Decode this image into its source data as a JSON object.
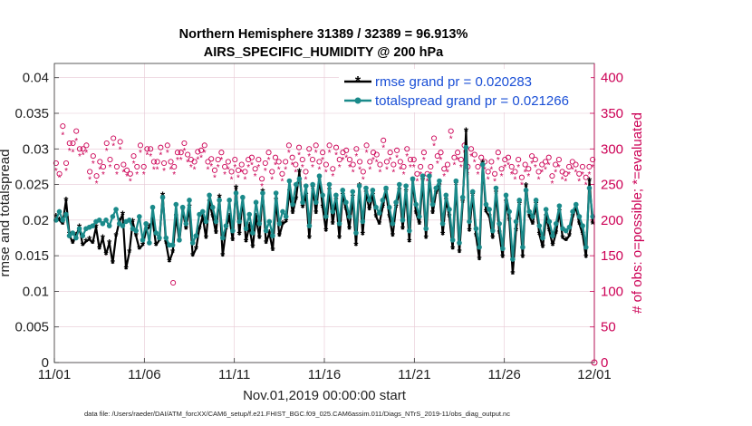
{
  "chart_data": {
    "type": "line",
    "title": "Northern Hemisphere 31389 / 32389 = 96.913%",
    "subtitle": "AIRS_SPECIFIC_HUMIDITY @ 200 hPa",
    "xlabel": "Nov.01,2019 00:00:00 start",
    "ylabel": "rmse and totalspread",
    "ylabel_right": "# of obs: o=possible; *=evaluated",
    "footnote": "data file: /Users/raeder/DAI/ATM_forcXX/CAM6_setup/f.e21.FHIST_BGC.f09_025.CAM6assim.011/Diags_NTrS_2019-11/obs_diag_output.nc",
    "x_tick_labels": [
      "11/01",
      "11/06",
      "11/11",
      "11/16",
      "11/21",
      "11/26",
      "12/01"
    ],
    "x_tick_days": [
      0,
      5,
      10,
      15,
      20,
      25,
      30
    ],
    "y_tick_labels": [
      "0",
      "0.005",
      "0.01",
      "0.015",
      "0.02",
      "0.025",
      "0.03",
      "0.035",
      "0.04"
    ],
    "ylim": [
      0,
      0.042
    ],
    "y2_tick_labels": [
      "0",
      "50",
      "100",
      "150",
      "200",
      "250",
      "300",
      "350",
      "400"
    ],
    "y2lim": [
      0,
      420
    ],
    "xlim": [
      0,
      30
    ],
    "legend_location": "top-right",
    "series": [
      {
        "name": "rmse grand pr = 0.020283",
        "color": "#000000",
        "marker": "star",
        "values": [
          0.0205,
          0.02,
          0.0195,
          0.0228,
          0.018,
          0.0168,
          0.0178,
          0.019,
          0.0165,
          0.017,
          0.0173,
          0.0168,
          0.019,
          0.016,
          0.0175,
          0.0152,
          0.0168,
          0.014,
          0.0178,
          0.0198,
          0.0208,
          0.0132,
          0.0155,
          0.0198,
          0.0178,
          0.016,
          0.0165,
          0.0185,
          0.019,
          0.02,
          0.0165,
          0.0172,
          0.0235,
          0.0168,
          0.0142,
          0.0155,
          0.0205,
          0.017,
          0.0215,
          0.0188,
          0.0218,
          0.015,
          0.016,
          0.0188,
          0.0205,
          0.0175,
          0.0225,
          0.0205,
          0.0182,
          0.0232,
          0.015,
          0.0188,
          0.0205,
          0.0172,
          0.0245,
          0.018,
          0.023,
          0.017,
          0.0192,
          0.0162,
          0.0205,
          0.0175,
          0.024,
          0.0168,
          0.0182,
          0.0158,
          0.0228,
          0.0178,
          0.0195,
          0.0198,
          0.024,
          0.021,
          0.023,
          0.0268,
          0.0218,
          0.0235,
          0.0175,
          0.0245,
          0.021,
          0.0258,
          0.0218,
          0.0185,
          0.0242,
          0.0195,
          0.0228,
          0.0175,
          0.0235,
          0.0215,
          0.0188,
          0.0232,
          0.0165,
          0.0248,
          0.018,
          0.0238,
          0.0215,
          0.0235,
          0.0205,
          0.0195,
          0.0218,
          0.024,
          0.0205,
          0.0178,
          0.0218,
          0.0242,
          0.0188,
          0.024,
          0.017,
          0.0255,
          0.021,
          0.0195,
          0.0255,
          0.0175,
          0.026,
          0.021,
          0.0238,
          0.0248,
          0.018,
          0.0228,
          0.0205,
          0.016,
          0.025,
          0.0155,
          0.0225,
          0.0325,
          0.0185,
          0.0235,
          0.0178,
          0.0145,
          0.028,
          0.0212,
          0.0205,
          0.0175,
          0.0238,
          0.0182,
          0.0148,
          0.0225,
          0.02,
          0.0125,
          0.0185,
          0.0222,
          0.0148,
          0.0248,
          0.0205,
          0.0195,
          0.0222,
          0.018,
          0.0162,
          0.0205,
          0.0185,
          0.0165,
          0.0182,
          0.0212,
          0.0175,
          0.0172,
          0.0178,
          0.0205,
          0.0218,
          0.0195,
          0.018,
          0.0148,
          0.0255,
          0.0195
        ]
      },
      {
        "name": "totalspread grand pr = 0.021266",
        "color": "#1a8a8a",
        "marker": "circle",
        "values": [
          0.02,
          0.0212,
          0.02,
          0.0208,
          0.0178,
          0.0182,
          0.0175,
          0.0188,
          0.0178,
          0.0188,
          0.019,
          0.0192,
          0.0198,
          0.02,
          0.0195,
          0.02,
          0.0192,
          0.0205,
          0.0215,
          0.0195,
          0.0192,
          0.0198,
          0.02,
          0.0188,
          0.0185,
          0.0205,
          0.0172,
          0.0195,
          0.0168,
          0.0218,
          0.0182,
          0.0175,
          0.0232,
          0.0175,
          0.0165,
          0.0165,
          0.0222,
          0.0172,
          0.0218,
          0.0195,
          0.0228,
          0.0168,
          0.0178,
          0.0208,
          0.0212,
          0.0198,
          0.0235,
          0.0218,
          0.0198,
          0.0228,
          0.0175,
          0.0192,
          0.0228,
          0.0185,
          0.0238,
          0.0198,
          0.0232,
          0.0188,
          0.0208,
          0.0182,
          0.0225,
          0.0195,
          0.0238,
          0.0185,
          0.0198,
          0.0178,
          0.0238,
          0.0195,
          0.0212,
          0.0205,
          0.0255,
          0.0222,
          0.025,
          0.0258,
          0.0225,
          0.0248,
          0.0192,
          0.025,
          0.0225,
          0.0262,
          0.0235,
          0.0205,
          0.025,
          0.0212,
          0.0235,
          0.0195,
          0.0242,
          0.0225,
          0.0205,
          0.024,
          0.0182,
          0.0248,
          0.0198,
          0.0245,
          0.0228,
          0.0242,
          0.0218,
          0.021,
          0.0228,
          0.0245,
          0.0218,
          0.0195,
          0.0225,
          0.025,
          0.02,
          0.0248,
          0.0185,
          0.0258,
          0.0222,
          0.0205,
          0.0262,
          0.0188,
          0.0262,
          0.0222,
          0.0245,
          0.0255,
          0.0195,
          0.0235,
          0.0215,
          0.0172,
          0.0255,
          0.0168,
          0.0232,
          0.0302,
          0.0198,
          0.024,
          0.0188,
          0.0162,
          0.0278,
          0.0222,
          0.0215,
          0.0185,
          0.0245,
          0.0195,
          0.016,
          0.0235,
          0.0212,
          0.0145,
          0.0198,
          0.0228,
          0.0162,
          0.0242,
          0.0212,
          0.0205,
          0.0228,
          0.0192,
          0.0175,
          0.0215,
          0.0198,
          0.0178,
          0.0195,
          0.022,
          0.0188,
          0.0185,
          0.019,
          0.0212,
          0.0222,
          0.0205,
          0.0192,
          0.0162,
          0.0245,
          0.0205
        ]
      }
    ],
    "obs_possible": [
      280,
      265,
      332,
      280,
      308,
      308,
      325,
      300,
      300,
      305,
      268,
      290,
      262,
      282,
      275,
      308,
      285,
      315,
      275,
      310,
      278,
      270,
      265,
      290,
      275,
      305,
      275,
      300,
      300,
      282,
      282,
      302,
      280,
      305,
      282,
      275,
      295,
      295,
      308,
      292,
      285,
      282,
      296,
      298,
      305,
      282,
      286,
      270,
      285,
      295,
      275,
      282,
      268,
      285,
      270,
      278,
      268,
      285,
      288,
      272,
      285,
      258,
      280,
      295,
      268,
      288,
      282,
      265,
      282,
      305,
      288,
      278,
      302,
      285,
      268,
      300,
      285,
      305,
      282,
      295,
      278,
      305,
      272,
      302,
      285,
      295,
      298,
      285,
      278,
      300,
      282,
      268,
      305,
      282,
      295,
      292,
      278,
      312,
      282,
      295,
      278,
      298,
      282,
      275,
      300,
      285,
      285,
      265,
      275,
      295,
      265,
      275,
      315,
      290,
      295,
      272,
      278,
      325,
      288,
      295,
      285,
      305,
      275,
      300,
      292,
      275,
      288,
      282,
      268,
      282,
      265,
      295,
      272,
      285,
      288,
      275,
      268,
      285,
      260,
      278,
      272,
      290,
      285,
      268,
      278,
      282,
      288,
      262,
      278,
      285,
      268,
      265,
      275,
      282,
      278,
      265,
      275,
      260,
      275,
      285
    ],
    "obs_evaluated": [
      270,
      260,
      320,
      270,
      298,
      296,
      312,
      290,
      292,
      295,
      258,
      280,
      252,
      272,
      265,
      298,
      275,
      305,
      265,
      300,
      268,
      262,
      255,
      280,
      265,
      295,
      265,
      292,
      290,
      272,
      272,
      292,
      270,
      295,
      272,
      265,
      285,
      285,
      298,
      282,
      275,
      272,
      286,
      288,
      295,
      272,
      276,
      260,
      275,
      285,
      265,
      272,
      258,
      275,
      260,
      268,
      258,
      275,
      278,
      262,
      275,
      248,
      270,
      285,
      258,
      278,
      272,
      255,
      272,
      295,
      278,
      268,
      292,
      275,
      258,
      290,
      275,
      295,
      272,
      285,
      268,
      295,
      262,
      292,
      275,
      285,
      288,
      275,
      268,
      290,
      272,
      258,
      295,
      272,
      285,
      282,
      268,
      302,
      272,
      285,
      268,
      288,
      272,
      265,
      290,
      275,
      275,
      255,
      265,
      285,
      255,
      265,
      305,
      280,
      285,
      262,
      268,
      315,
      278,
      285,
      275,
      295,
      265,
      290,
      282,
      265,
      278,
      272,
      258,
      272,
      255,
      285,
      262,
      275,
      278,
      265,
      258,
      275,
      250,
      268,
      262,
      280,
      275,
      258,
      268,
      272,
      278,
      252,
      268,
      275,
      258,
      255,
      265,
      272,
      268,
      255,
      265,
      250,
      265,
      275
    ]
  }
}
